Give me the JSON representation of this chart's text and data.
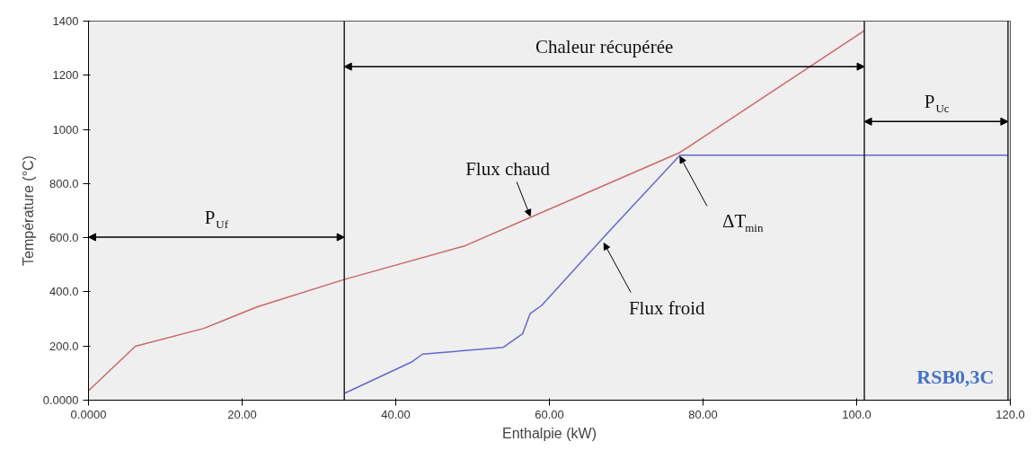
{
  "chart_data": {
    "type": "line",
    "xlabel": "Enthalpie (kW)",
    "ylabel": "Température (°C)",
    "xlim": [
      0,
      120
    ],
    "ylim": [
      0,
      1400
    ],
    "xticks": [
      {
        "value": 0,
        "label": "0.0000"
      },
      {
        "value": 20,
        "label": "20.00"
      },
      {
        "value": 40,
        "label": "40.00"
      },
      {
        "value": 60,
        "label": "60.00"
      },
      {
        "value": 80,
        "label": "80.00"
      },
      {
        "value": 100,
        "label": "100.0"
      },
      {
        "value": 120,
        "label": "120.0"
      }
    ],
    "yticks": [
      {
        "value": 0,
        "label": "0.0000"
      },
      {
        "value": 200,
        "label": "200.0"
      },
      {
        "value": 400,
        "label": "400.0"
      },
      {
        "value": 600,
        "label": "600.0"
      },
      {
        "value": 800,
        "label": "800.0"
      },
      1000,
      1200,
      1400
    ],
    "grid": false,
    "marker": "none",
    "line_style": "solid",
    "series": [
      {
        "color": "#cc6666",
        "x": [
          0,
          6.1,
          15,
          22,
          33.2,
          49,
          77,
          101
        ],
        "values": [
          35,
          199,
          265,
          345,
          445,
          570,
          915,
          1365
        ]
      },
      {
        "color": "#6666cc",
        "x": [
          33.3,
          42,
          43.5,
          54,
          56.5,
          57.5,
          59,
          67,
          77,
          119.7
        ],
        "values": [
          25,
          140,
          170,
          195,
          245,
          320,
          350,
          600,
          905,
          905
        ]
      }
    ],
    "ref_lines": [
      {
        "axis": "x",
        "value": 33.3,
        "color": "#222222"
      },
      {
        "axis": "x",
        "value": 101,
        "color": "#222222"
      },
      {
        "axis": "x",
        "value": 119.7,
        "color": "#222222"
      }
    ],
    "annotations": [
      "P$_{Uf}$",
      "Chaleur récupérée",
      "P$_{Uc}$",
      {
        "text": "Flux chaud",
        "x": 57.5,
        "y": 680
      },
      {
        "text": "Flux froid",
        "x": 67.1,
        "y": 580
      },
      {
        "text": "ΔT$_{min}$",
        "x": 77,
        "y": 900
      },
      "RSB0,3C"
    ]
  }
}
